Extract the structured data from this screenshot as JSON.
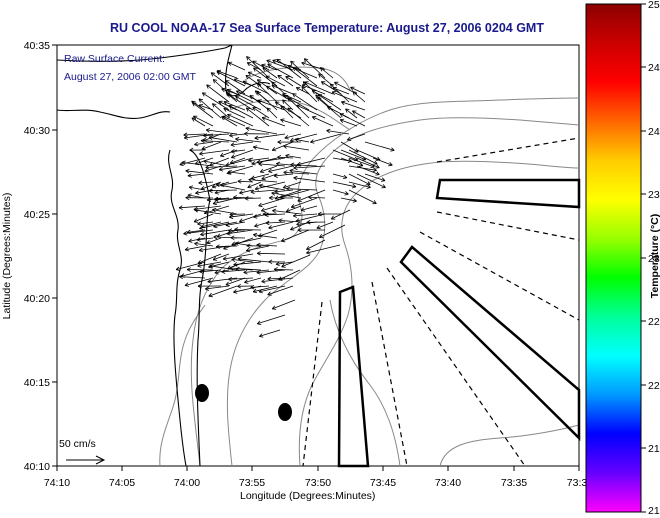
{
  "title": "RU COOL  NOAA-17  Sea Surface Temperature:  August 27, 2006 0204 GMT",
  "current_label_line1": "Raw Surface Current:",
  "current_label_line2": "August 27, 2006 02:00 GMT",
  "x_axis_label": "Longitude (Degrees:Minutes)",
  "y_axis_label": "Latitude (Degrees:Minutes)",
  "colorbar_label": "Temperature (°C)",
  "scale_label": "50 cm/s",
  "x_ticks": [
    "74:10",
    "74:05",
    "74:00",
    "73:55",
    "73:50",
    "73:45",
    "73:40",
    "73:35",
    "73:3"
  ],
  "y_ticks": [
    "40:35",
    "40:30",
    "40:25",
    "40:20",
    "40:15",
    "40:10"
  ],
  "colorbar_ticks": [
    "25",
    "24.5",
    "24",
    "23.5",
    "23",
    "22.5",
    "22",
    "21.5",
    "21"
  ],
  "colorbar_colors": [
    "#ff00ff",
    "#6600ff",
    "#0000ff",
    "#0099ff",
    "#00ffff",
    "#00ff99",
    "#00ff00",
    "#99ff00",
    "#ffff00",
    "#ffcc00",
    "#ff6600",
    "#ff0000",
    "#cc0000",
    "#8c0000"
  ],
  "colors": {
    "title": "#1a1a8c",
    "land_fill": "#ffffff",
    "contour": "#888888",
    "vector": "#000000"
  }
}
